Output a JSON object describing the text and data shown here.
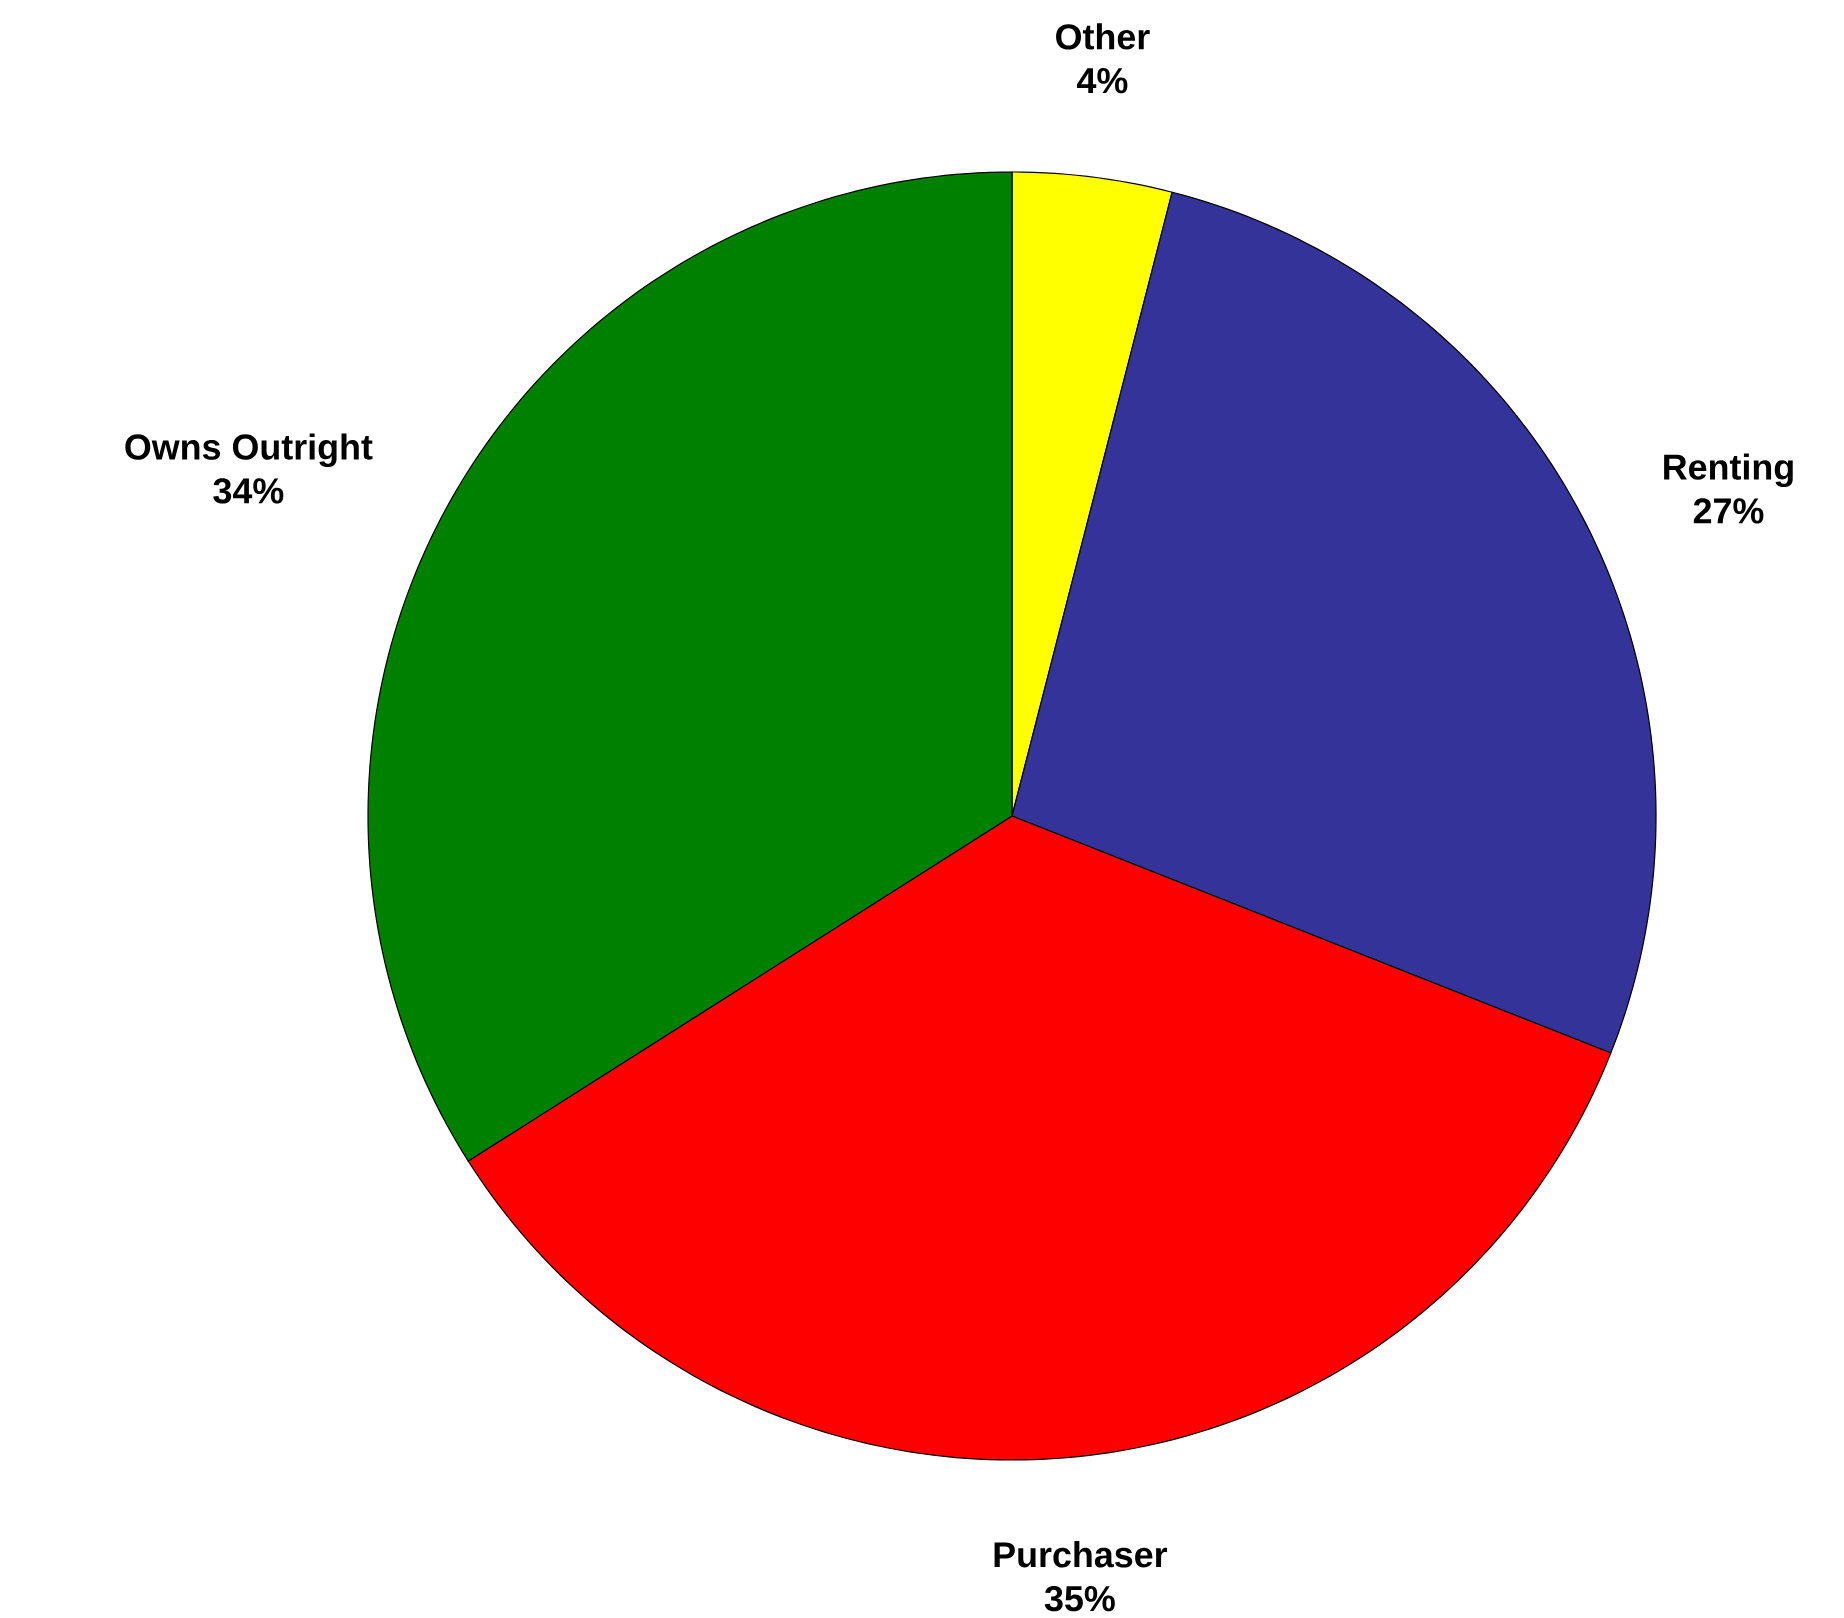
{
  "chart_data": {
    "type": "pie",
    "categories": [
      "Other",
      "Renting",
      "Purchaser",
      "Owns Outright"
    ],
    "values": [
      4,
      27,
      35,
      34
    ],
    "colors": [
      "#ffff00",
      "#333399",
      "#ff0000",
      "#008000"
    ],
    "value_labels": [
      "4%",
      "27%",
      "35%",
      "34%"
    ]
  }
}
